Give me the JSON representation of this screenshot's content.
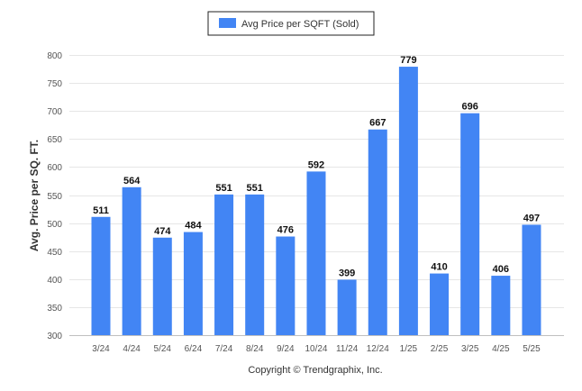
{
  "chart_data": {
    "type": "bar",
    "categories": [
      "3/24",
      "4/24",
      "5/24",
      "6/24",
      "7/24",
      "8/24",
      "9/24",
      "10/24",
      "11/24",
      "12/24",
      "1/25",
      "2/25",
      "3/25",
      "4/25",
      "5/25"
    ],
    "series": [
      {
        "name": "Avg Price per SQFT (Sold)",
        "values": [
          511,
          564,
          474,
          484,
          551,
          551,
          476,
          592,
          399,
          667,
          779,
          410,
          696,
          406,
          497
        ]
      }
    ],
    "ylabel": "Avg. Price per SQ. FT.",
    "xlabel": "",
    "ylim": [
      300,
      800
    ],
    "yticks": [
      300,
      350,
      400,
      450,
      500,
      550,
      600,
      650,
      700,
      750,
      800
    ],
    "grid": true,
    "legend_position": "top-center",
    "data_labels": true,
    "bar_color": "#4285f4"
  },
  "footer": {
    "credit": "Copyright © Trendgraphix, Inc."
  }
}
